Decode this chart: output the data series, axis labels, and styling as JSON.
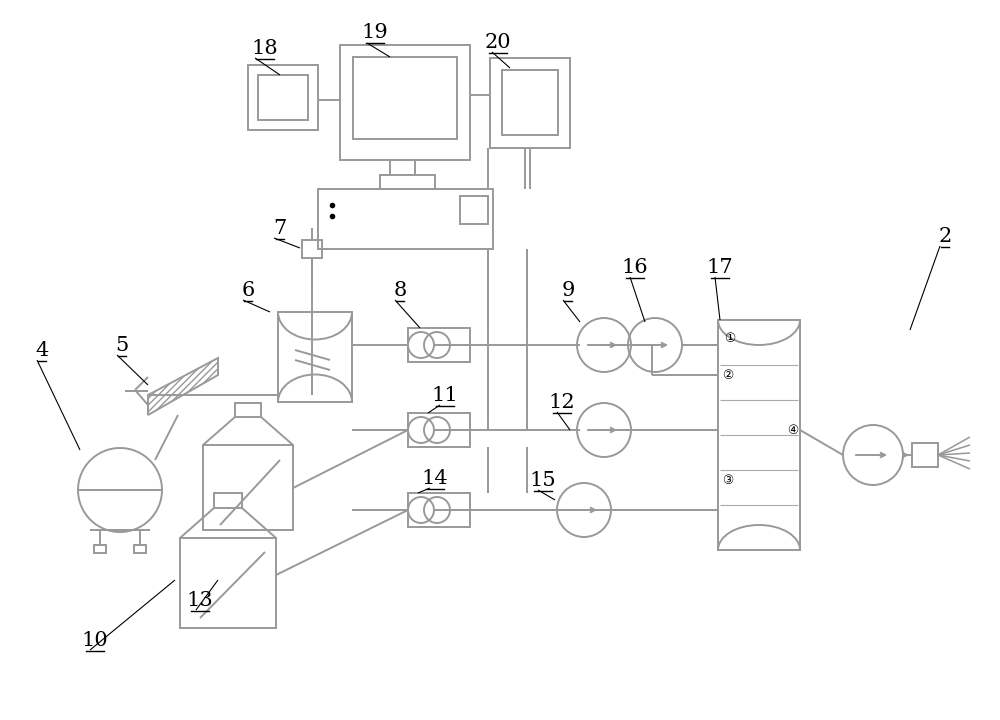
{
  "bg": "#ffffff",
  "lc": "#999999",
  "lw": 1.4,
  "lfs": 15
}
